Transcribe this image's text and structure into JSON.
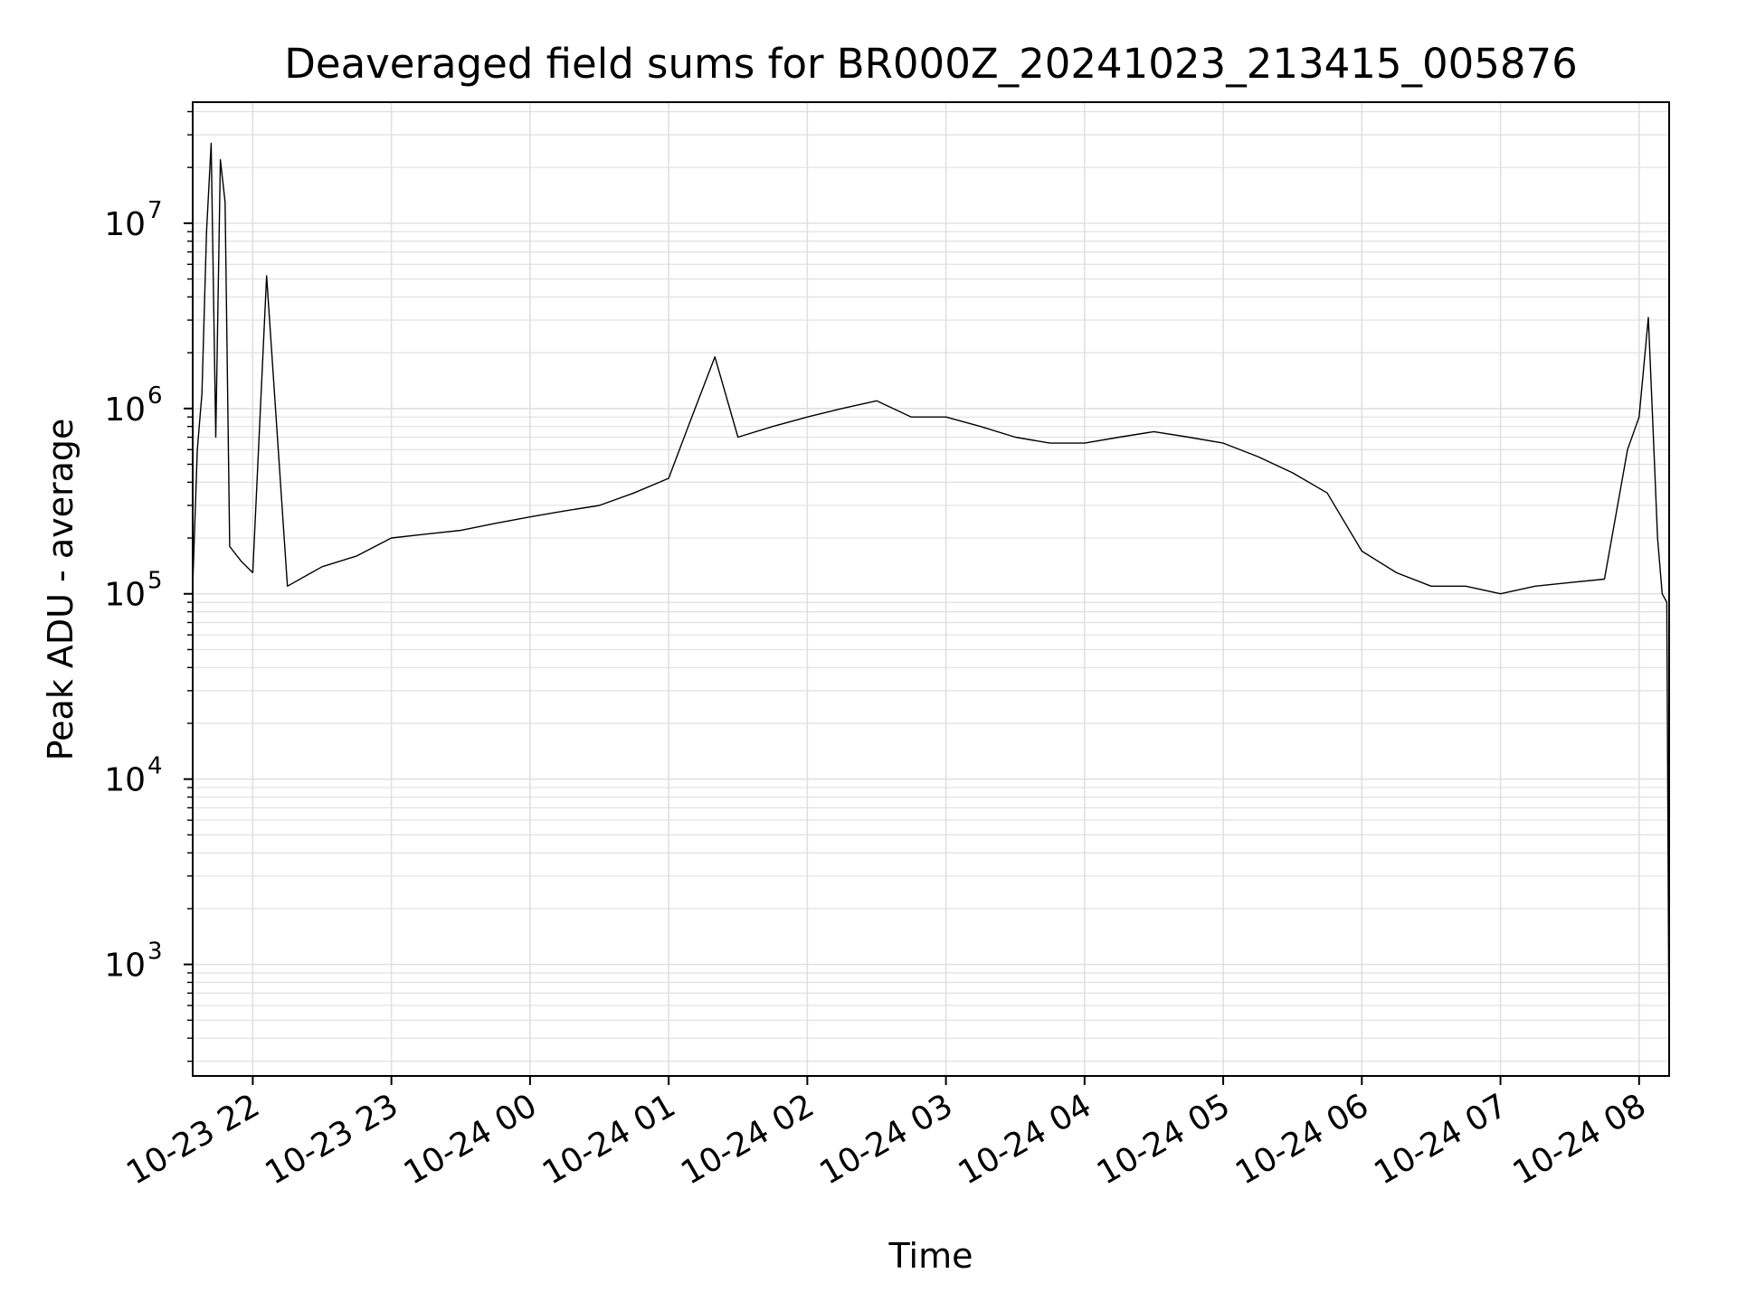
{
  "chart_data": {
    "type": "line",
    "title": "Deaveraged field sums for BR000Z_20241023_213415_005876",
    "xlabel": "Time",
    "ylabel": "Peak ADU - average",
    "yscale": "log",
    "grid": true,
    "line_color": "#000000",
    "grid_color": "#e0e0e0",
    "x_start": "2024-10-23 21:34",
    "x_end": "2024-10-24 08:13",
    "ylim": [
      250,
      45000000
    ],
    "x_ticks": [
      {
        "label": "10-23 22",
        "value": "2024-10-23 22:00"
      },
      {
        "label": "10-23 23",
        "value": "2024-10-23 23:00"
      },
      {
        "label": "10-24 00",
        "value": "2024-10-24 00:00"
      },
      {
        "label": "10-24 01",
        "value": "2024-10-24 01:00"
      },
      {
        "label": "10-24 02",
        "value": "2024-10-24 02:00"
      },
      {
        "label": "10-24 03",
        "value": "2024-10-24 03:00"
      },
      {
        "label": "10-24 04",
        "value": "2024-10-24 04:00"
      },
      {
        "label": "10-24 05",
        "value": "2024-10-24 05:00"
      },
      {
        "label": "10-24 06",
        "value": "2024-10-24 06:00"
      },
      {
        "label": "10-24 07",
        "value": "2024-10-24 07:00"
      },
      {
        "label": "10-24 08",
        "value": "2024-10-24 08:00"
      }
    ],
    "y_ticks": [
      {
        "value": 1000,
        "base": "10",
        "exp": "3"
      },
      {
        "value": 10000,
        "base": "10",
        "exp": "4"
      },
      {
        "value": 100000,
        "base": "10",
        "exp": "5"
      },
      {
        "value": 1000000,
        "base": "10",
        "exp": "6"
      },
      {
        "value": 10000000,
        "base": "10",
        "exp": "7"
      }
    ],
    "series": [
      {
        "x": [
          "2024-10-23 21:34",
          "2024-10-23 21:36",
          "2024-10-23 21:38",
          "2024-10-23 21:40",
          "2024-10-23 21:42",
          "2024-10-23 21:44",
          "2024-10-23 21:46",
          "2024-10-23 21:48",
          "2024-10-23 21:50",
          "2024-10-23 21:55",
          "2024-10-23 22:00",
          "2024-10-23 22:06",
          "2024-10-23 22:15",
          "2024-10-23 22:30",
          "2024-10-23 22:45",
          "2024-10-23 23:00",
          "2024-10-23 23:15",
          "2024-10-23 23:30",
          "2024-10-23 23:45",
          "2024-10-24 00:00",
          "2024-10-24 00:15",
          "2024-10-24 00:30",
          "2024-10-24 00:45",
          "2024-10-24 01:00",
          "2024-10-24 01:10",
          "2024-10-24 01:20",
          "2024-10-24 01:30",
          "2024-10-24 01:45",
          "2024-10-24 02:00",
          "2024-10-24 02:15",
          "2024-10-24 02:30",
          "2024-10-24 02:45",
          "2024-10-24 03:00",
          "2024-10-24 03:15",
          "2024-10-24 03:30",
          "2024-10-24 03:45",
          "2024-10-24 04:00",
          "2024-10-24 04:15",
          "2024-10-24 04:30",
          "2024-10-24 04:45",
          "2024-10-24 05:00",
          "2024-10-24 05:15",
          "2024-10-24 05:30",
          "2024-10-24 05:45",
          "2024-10-24 06:00",
          "2024-10-24 06:15",
          "2024-10-24 06:30",
          "2024-10-24 06:45",
          "2024-10-24 07:00",
          "2024-10-24 07:15",
          "2024-10-24 07:30",
          "2024-10-24 07:45",
          "2024-10-24 07:55",
          "2024-10-24 08:00",
          "2024-10-24 08:04",
          "2024-10-24 08:06",
          "2024-10-24 08:08",
          "2024-10-24 08:10",
          "2024-10-24 08:12",
          "2024-10-24 08:13"
        ],
        "y": [
          110000,
          600000,
          1200000,
          9000000,
          27000000,
          700000,
          22000000,
          13000000,
          180000,
          150000,
          130000,
          5200000,
          110000,
          140000,
          160000,
          200000,
          210000,
          220000,
          240000,
          260000,
          280000,
          300000,
          350000,
          420000,
          900000,
          1900000,
          700000,
          800000,
          900000,
          1000000,
          1100000,
          900000,
          900000,
          800000,
          700000,
          650000,
          650000,
          700000,
          750000,
          700000,
          650000,
          550000,
          450000,
          350000,
          170000,
          130000,
          110000,
          110000,
          100000,
          110000,
          115000,
          120000,
          600000,
          900000,
          3100000,
          800000,
          200000,
          100000,
          90000,
          300
        ]
      }
    ]
  }
}
